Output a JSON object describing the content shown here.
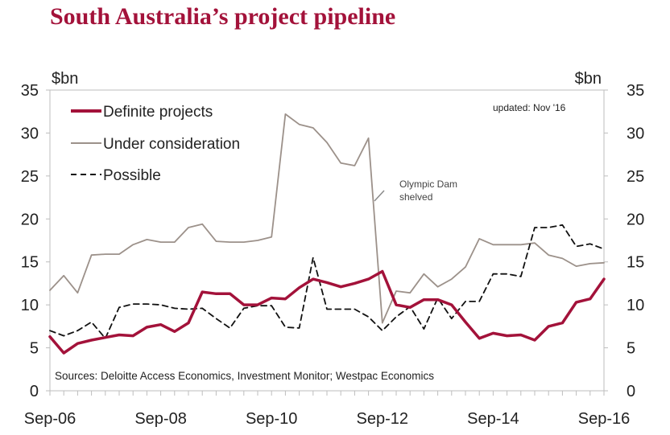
{
  "title": "South Australia’s project pipeline",
  "chart_data": {
    "type": "line",
    "title": "South Australia’s project pipeline",
    "ylabel_left": "$bn",
    "ylabel_right": "$bn",
    "ylim": [
      0,
      35
    ],
    "yticks": [
      "0",
      "5",
      "10",
      "15",
      "20",
      "25",
      "30",
      "35"
    ],
    "xlim": [
      0,
      40
    ],
    "xticks": [
      {
        "x": 0,
        "label": "Sep-06"
      },
      {
        "x": 8,
        "label": "Sep-08"
      },
      {
        "x": 16,
        "label": "Sep-10"
      },
      {
        "x": 24,
        "label": "Sep-12"
      },
      {
        "x": 32,
        "label": "Sep-14"
      },
      {
        "x": 40,
        "label": "Sep-16"
      }
    ],
    "x_unit": "quarters (Sep-06 to Sep-16)",
    "legend_position": "top-left",
    "updated_note": "updated:  Nov '16",
    "annotation": [
      "Olympic Dam",
      "shelved"
    ],
    "source": "Sources: Deloitte Access Economics, Investment Monitor;  Westpac Economics",
    "colors": {
      "definite": "#a3123a",
      "under": "#9c918a",
      "possible": "#111111",
      "title": "#a3123a"
    },
    "series": [
      {
        "name": "Definite projects",
        "style": "thick-solid",
        "x": [
          0,
          1,
          2,
          3,
          4,
          5,
          6,
          7,
          8,
          9,
          10,
          11,
          12,
          13,
          14,
          15,
          16,
          17,
          18,
          19,
          20,
          21,
          22,
          23,
          24,
          25,
          26,
          27,
          28,
          29,
          30,
          31,
          32,
          33,
          34,
          35,
          36,
          37,
          38,
          39,
          40
        ],
        "values": [
          6.3,
          4.4,
          5.5,
          5.9,
          6.2,
          6.5,
          6.4,
          7.4,
          7.7,
          6.9,
          7.9,
          11.5,
          11.3,
          11.3,
          10.0,
          10.0,
          10.8,
          10.7,
          12.0,
          13.0,
          12.6,
          12.1,
          12.5,
          13.0,
          13.9,
          10.0,
          9.7,
          10.6,
          10.6,
          10.0,
          8.0,
          6.1,
          6.7,
          6.4,
          6.5,
          5.9,
          7.5,
          7.9,
          10.3,
          10.7,
          13.0
        ]
      },
      {
        "name": "Under consideration",
        "style": "thin-solid",
        "x": [
          0,
          1,
          2,
          3,
          4,
          5,
          6,
          7,
          8,
          9,
          10,
          11,
          12,
          13,
          14,
          15,
          16,
          17,
          18,
          19,
          20,
          21,
          22,
          23,
          24,
          25,
          26,
          27,
          28,
          29,
          30,
          31,
          32,
          33,
          34,
          35,
          36,
          37,
          38,
          39,
          40
        ],
        "values": [
          11.7,
          13.4,
          11.4,
          15.8,
          15.9,
          15.9,
          17.0,
          17.6,
          17.3,
          17.3,
          19.0,
          19.4,
          17.4,
          17.3,
          17.3,
          17.5,
          17.9,
          32.2,
          31.0,
          30.6,
          28.9,
          26.5,
          26.2,
          29.4,
          7.9,
          11.6,
          11.4,
          13.6,
          12.1,
          13.0,
          14.4,
          17.7,
          17.0,
          17.0,
          17.0,
          17.2,
          15.8,
          15.4,
          14.5,
          14.8,
          14.9
        ]
      },
      {
        "name": "Possible",
        "style": "dashed",
        "x": [
          0,
          1,
          2,
          3,
          4,
          5,
          6,
          7,
          8,
          9,
          10,
          11,
          12,
          13,
          14,
          15,
          16,
          17,
          18,
          19,
          20,
          21,
          22,
          23,
          24,
          25,
          26,
          27,
          28,
          29,
          30,
          31,
          32,
          33,
          34,
          35,
          36,
          37,
          38,
          39,
          40
        ],
        "values": [
          7.0,
          6.4,
          7.0,
          8.0,
          6.1,
          9.7,
          10.1,
          10.1,
          10.0,
          9.6,
          9.5,
          9.6,
          8.4,
          7.3,
          9.6,
          9.9,
          9.9,
          7.4,
          7.3,
          15.5,
          9.5,
          9.5,
          9.5,
          8.6,
          7.0,
          8.6,
          9.8,
          7.2,
          10.8,
          8.4,
          10.4,
          10.4,
          13.6,
          13.6,
          13.3,
          19.0,
          19.0,
          19.3,
          16.8,
          17.1,
          16.5
        ]
      }
    ]
  }
}
